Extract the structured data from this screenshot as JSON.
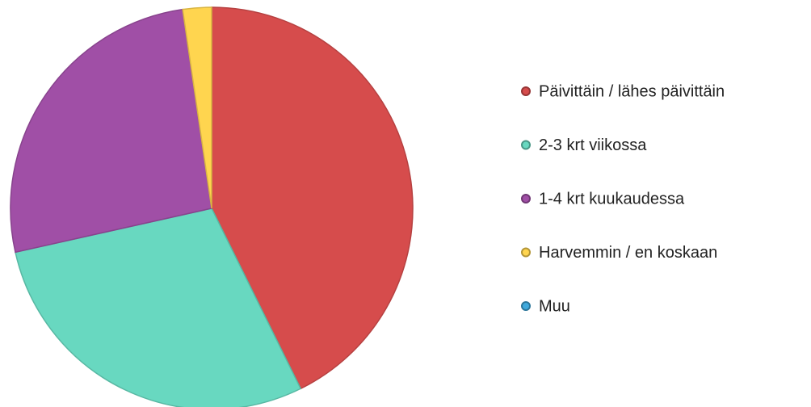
{
  "chart_data": {
    "type": "pie",
    "categories": [
      "Päivittäin / lähes päivittäin",
      "2-3 krt viikossa",
      "1-4 krt kuukaudessa",
      "Harvemmin / en koskaan",
      "Muu"
    ],
    "values": [
      42.7,
      28.8,
      26.2,
      2.3,
      0
    ],
    "colors": [
      "#d64c4c",
      "#68d8c0",
      "#a04fa6",
      "#ffd54f",
      "#3fa9dc"
    ],
    "legend": "right"
  }
}
